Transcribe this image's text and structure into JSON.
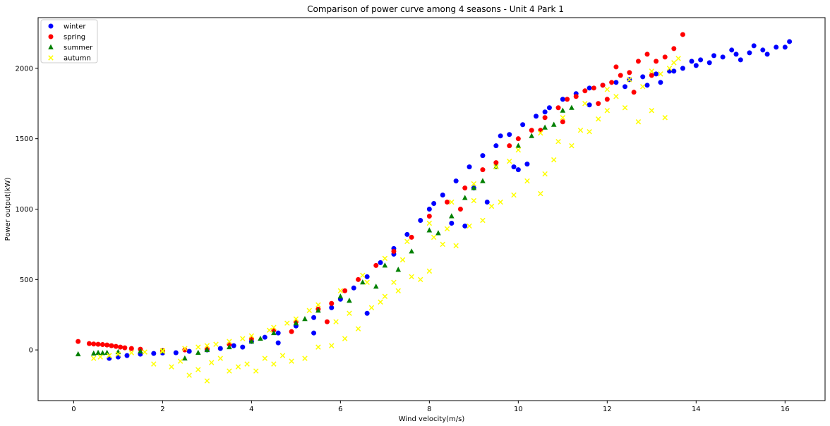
{
  "chart_data": {
    "type": "scatter",
    "title": "Comparison of power curve among 4 seasons - Unit 4 Park 1",
    "xlabel": "Wind velocity(m/s)",
    "ylabel": "Power output(kW)",
    "xlim": [
      -0.8,
      16.9
    ],
    "ylim": [
      -360,
      2360
    ],
    "xticks": [
      0,
      2,
      4,
      6,
      8,
      10,
      12,
      14,
      16
    ],
    "yticks": [
      0,
      500,
      1000,
      1500,
      2000
    ],
    "grid": false,
    "legend_position": "top-left",
    "series": [
      {
        "name": "winter",
        "marker": "circle",
        "color": "#0000ff",
        "points": [
          [
            0.8,
            -60
          ],
          [
            1.0,
            -50
          ],
          [
            1.2,
            -40
          ],
          [
            1.5,
            -30
          ],
          [
            1.8,
            -25
          ],
          [
            2.0,
            -22
          ],
          [
            2.3,
            -20
          ],
          [
            2.6,
            -10
          ],
          [
            3.0,
            0
          ],
          [
            3.3,
            10
          ],
          [
            3.6,
            30
          ],
          [
            4.0,
            60
          ],
          [
            4.3,
            90
          ],
          [
            4.6,
            120
          ],
          [
            5.0,
            170
          ],
          [
            5.4,
            230
          ],
          [
            5.8,
            300
          ],
          [
            6.0,
            360
          ],
          [
            6.3,
            440
          ],
          [
            6.6,
            520
          ],
          [
            6.9,
            620
          ],
          [
            7.2,
            720
          ],
          [
            7.5,
            820
          ],
          [
            7.8,
            920
          ],
          [
            8.0,
            1000
          ],
          [
            8.3,
            1100
          ],
          [
            8.6,
            1200
          ],
          [
            8.9,
            1300
          ],
          [
            9.2,
            1380
          ],
          [
            9.5,
            1450
          ],
          [
            9.8,
            1530
          ],
          [
            10.1,
            1600
          ],
          [
            10.4,
            1660
          ],
          [
            10.7,
            1720
          ],
          [
            11.0,
            1780
          ],
          [
            11.3,
            1820
          ],
          [
            11.6,
            1860
          ],
          [
            11.9,
            1880
          ],
          [
            12.2,
            1900
          ],
          [
            12.5,
            1920
          ],
          [
            12.8,
            1940
          ],
          [
            13.1,
            1960
          ],
          [
            13.4,
            1980
          ],
          [
            13.7,
            2000
          ],
          [
            14.0,
            2020
          ],
          [
            14.3,
            2040
          ],
          [
            14.6,
            2080
          ],
          [
            14.9,
            2100
          ],
          [
            15.2,
            2110
          ],
          [
            15.5,
            2130
          ],
          [
            15.8,
            2150
          ],
          [
            16.1,
            2190
          ],
          [
            13.9,
            2050
          ],
          [
            14.4,
            2090
          ],
          [
            15.0,
            2060
          ],
          [
            15.6,
            2100
          ],
          [
            8.5,
            900
          ],
          [
            8.8,
            880
          ],
          [
            9.3,
            1050
          ],
          [
            9.9,
            1300
          ],
          [
            10.0,
            1280
          ],
          [
            10.2,
            1320
          ],
          [
            6.6,
            260
          ],
          [
            5.4,
            120
          ],
          [
            4.6,
            50
          ],
          [
            3.8,
            20
          ],
          [
            7.2,
            680
          ],
          [
            9.0,
            1150
          ],
          [
            11.6,
            1740
          ],
          [
            12.9,
            1880
          ],
          [
            13.2,
            1900
          ],
          [
            12.4,
            1870
          ],
          [
            10.6,
            1690
          ],
          [
            9.6,
            1520
          ],
          [
            8.1,
            1040
          ],
          [
            14.8,
            2130
          ],
          [
            15.3,
            2160
          ],
          [
            16.0,
            2150
          ],
          [
            13.5,
            1980
          ],
          [
            14.1,
            2060
          ]
        ]
      },
      {
        "name": "spring",
        "marker": "circle",
        "color": "#ff0000",
        "points": [
          [
            0.1,
            60
          ],
          [
            0.35,
            45
          ],
          [
            0.45,
            42
          ],
          [
            0.55,
            40
          ],
          [
            0.65,
            38
          ],
          [
            0.75,
            35
          ],
          [
            0.85,
            30
          ],
          [
            0.95,
            25
          ],
          [
            1.05,
            20
          ],
          [
            1.15,
            15
          ],
          [
            1.3,
            10
          ],
          [
            1.5,
            5
          ],
          [
            2.0,
            -5
          ],
          [
            2.5,
            0
          ],
          [
            3.0,
            10
          ],
          [
            3.5,
            40
          ],
          [
            4.0,
            80
          ],
          [
            4.5,
            140
          ],
          [
            5.0,
            200
          ],
          [
            5.5,
            290
          ],
          [
            5.8,
            330
          ],
          [
            6.1,
            420
          ],
          [
            6.4,
            500
          ],
          [
            6.8,
            600
          ],
          [
            7.2,
            700
          ],
          [
            7.6,
            800
          ],
          [
            8.0,
            950
          ],
          [
            8.4,
            1050
          ],
          [
            8.8,
            1150
          ],
          [
            9.2,
            1280
          ],
          [
            9.5,
            1330
          ],
          [
            9.8,
            1450
          ],
          [
            10.0,
            1500
          ],
          [
            10.3,
            1560
          ],
          [
            10.6,
            1650
          ],
          [
            10.9,
            1720
          ],
          [
            11.1,
            1780
          ],
          [
            11.3,
            1800
          ],
          [
            11.5,
            1840
          ],
          [
            11.7,
            1860
          ],
          [
            11.9,
            1880
          ],
          [
            12.0,
            1780
          ],
          [
            12.1,
            1900
          ],
          [
            12.3,
            1950
          ],
          [
            12.5,
            1970
          ],
          [
            12.7,
            2050
          ],
          [
            12.9,
            2100
          ],
          [
            13.1,
            2050
          ],
          [
            13.3,
            2080
          ],
          [
            13.5,
            2140
          ],
          [
            13.7,
            2240
          ],
          [
            12.6,
            1830
          ],
          [
            11.0,
            1620
          ],
          [
            10.5,
            1560
          ],
          [
            8.7,
            1000
          ],
          [
            5.7,
            200
          ],
          [
            4.9,
            130
          ],
          [
            13.0,
            1950
          ],
          [
            12.2,
            2010
          ],
          [
            11.8,
            1750
          ]
        ]
      },
      {
        "name": "summer",
        "marker": "triangle",
        "color": "#008000",
        "points": [
          [
            0.1,
            -30
          ],
          [
            0.45,
            -25
          ],
          [
            0.55,
            -20
          ],
          [
            0.65,
            -22
          ],
          [
            0.75,
            -20
          ],
          [
            1.0,
            -15
          ],
          [
            1.5,
            -10
          ],
          [
            2.0,
            -8
          ],
          [
            2.5,
            -60
          ],
          [
            2.8,
            -20
          ],
          [
            3.0,
            0
          ],
          [
            3.5,
            20
          ],
          [
            4.0,
            60
          ],
          [
            4.5,
            120
          ],
          [
            5.0,
            190
          ],
          [
            5.5,
            280
          ],
          [
            6.0,
            380
          ],
          [
            6.2,
            350
          ],
          [
            6.5,
            480
          ],
          [
            7.0,
            600
          ],
          [
            7.3,
            570
          ],
          [
            7.6,
            700
          ],
          [
            8.0,
            850
          ],
          [
            8.2,
            830
          ],
          [
            8.5,
            950
          ],
          [
            9.0,
            1150
          ],
          [
            9.5,
            1300
          ],
          [
            10.0,
            1450
          ],
          [
            10.3,
            1520
          ],
          [
            10.6,
            1580
          ],
          [
            10.8,
            1600
          ],
          [
            11.0,
            1700
          ],
          [
            11.2,
            1720
          ],
          [
            9.2,
            1200
          ],
          [
            8.8,
            1080
          ],
          [
            6.8,
            450
          ],
          [
            5.2,
            220
          ],
          [
            4.2,
            80
          ]
        ]
      },
      {
        "name": "autumn",
        "marker": "x",
        "color": "#ffff00",
        "points": [
          [
            0.45,
            -60
          ],
          [
            0.6,
            -50
          ],
          [
            0.8,
            -40
          ],
          [
            1.0,
            -30
          ],
          [
            1.3,
            -20
          ],
          [
            1.6,
            -15
          ],
          [
            1.8,
            -100
          ],
          [
            2.0,
            -10
          ],
          [
            2.2,
            -120
          ],
          [
            2.4,
            -80
          ],
          [
            2.6,
            -180
          ],
          [
            2.8,
            -140
          ],
          [
            3.0,
            -220
          ],
          [
            3.1,
            -90
          ],
          [
            3.3,
            -60
          ],
          [
            3.5,
            -150
          ],
          [
            3.7,
            -120
          ],
          [
            3.9,
            -100
          ],
          [
            4.1,
            -150
          ],
          [
            4.3,
            -60
          ],
          [
            4.5,
            -100
          ],
          [
            4.7,
            -40
          ],
          [
            4.9,
            -80
          ],
          [
            5.2,
            -60
          ],
          [
            5.5,
            20
          ],
          [
            5.8,
            30
          ],
          [
            6.1,
            80
          ],
          [
            6.4,
            150
          ],
          [
            6.7,
            300
          ],
          [
            7.0,
            380
          ],
          [
            7.3,
            420
          ],
          [
            7.6,
            520
          ],
          [
            8.0,
            560
          ],
          [
            8.3,
            750
          ],
          [
            8.6,
            740
          ],
          [
            8.9,
            880
          ],
          [
            9.2,
            920
          ],
          [
            9.6,
            1050
          ],
          [
            9.9,
            1100
          ],
          [
            10.2,
            1200
          ],
          [
            10.5,
            1110
          ],
          [
            10.8,
            1350
          ],
          [
            11.2,
            1450
          ],
          [
            11.6,
            1550
          ],
          [
            12.0,
            1700
          ],
          [
            12.4,
            1720
          ],
          [
            12.7,
            1620
          ],
          [
            13.0,
            1700
          ],
          [
            13.3,
            1650
          ],
          [
            2.0,
            -5
          ],
          [
            2.5,
            10
          ],
          [
            3.0,
            30
          ],
          [
            3.5,
            60
          ],
          [
            4.0,
            100
          ],
          [
            4.5,
            160
          ],
          [
            5.0,
            220
          ],
          [
            5.5,
            320
          ],
          [
            6.0,
            420
          ],
          [
            6.5,
            530
          ],
          [
            7.0,
            650
          ],
          [
            7.5,
            770
          ],
          [
            8.0,
            900
          ],
          [
            8.5,
            1050
          ],
          [
            9.0,
            1180
          ],
          [
            9.5,
            1300
          ],
          [
            10.0,
            1420
          ],
          [
            10.5,
            1540
          ],
          [
            11.0,
            1650
          ],
          [
            11.5,
            1750
          ],
          [
            12.0,
            1850
          ],
          [
            12.5,
            1920
          ],
          [
            13.0,
            1980
          ],
          [
            13.5,
            2040
          ],
          [
            13.6,
            2070
          ],
          [
            7.2,
            480
          ],
          [
            7.8,
            500
          ],
          [
            8.4,
            860
          ],
          [
            9.4,
            1020
          ],
          [
            10.6,
            1250
          ],
          [
            11.4,
            1560
          ],
          [
            5.9,
            200
          ],
          [
            6.2,
            260
          ],
          [
            6.9,
            340
          ],
          [
            12.2,
            1800
          ],
          [
            12.8,
            1870
          ],
          [
            13.4,
            2000
          ],
          [
            13.2,
            1960
          ],
          [
            11.8,
            1640
          ],
          [
            10.9,
            1480
          ],
          [
            9.8,
            1340
          ],
          [
            9.0,
            1060
          ],
          [
            8.1,
            800
          ],
          [
            7.4,
            640
          ],
          [
            6.6,
            480
          ],
          [
            5.3,
            280
          ],
          [
            4.8,
            190
          ],
          [
            4.4,
            140
          ],
          [
            3.8,
            80
          ],
          [
            3.2,
            40
          ],
          [
            2.8,
            20
          ]
        ]
      }
    ]
  }
}
